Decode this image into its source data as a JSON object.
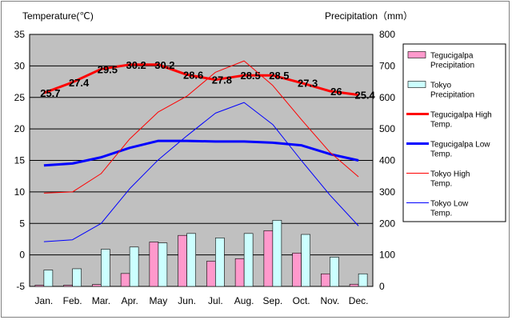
{
  "chart_data": {
    "type": "bar+line",
    "left_axis_title": "Temperature(℃)",
    "right_axis_title": "Precipitation（mm）",
    "categories": [
      "Jan.",
      "Feb.",
      "Mar.",
      "Apr.",
      "May",
      "Jun.",
      "Jul.",
      "Aug.",
      "Sep.",
      "Oct.",
      "Nov.",
      "Dec."
    ],
    "y_left": {
      "min": -5,
      "max": 35,
      "step": 5
    },
    "y_right": {
      "min": 0,
      "max": 800,
      "step": 100
    },
    "grid": "horizontal",
    "legend_position": "right",
    "bar_series": [
      {
        "name": "Tegucigalpa Precipitation",
        "color": "#ff99cc",
        "values": [
          4,
          4,
          6,
          41,
          141,
          162,
          80,
          88,
          177,
          106,
          40,
          7
        ]
      },
      {
        "name": "Tokyo Precipitation",
        "color": "#ccffff",
        "values": [
          52,
          56,
          118,
          125,
          138,
          168,
          154,
          168,
          210,
          165,
          93,
          40
        ]
      }
    ],
    "line_series": [
      {
        "name": "Tegucigalpa High Temp.",
        "color": "#ff0000",
        "width": 3,
        "values": [
          25.7,
          27.4,
          29.5,
          30.2,
          30.2,
          28.6,
          27.8,
          28.5,
          28.5,
          27.3,
          26,
          25.4
        ],
        "labels": [
          "25.7",
          "27.4",
          "29.5",
          "30.2",
          "30.2",
          "28.6",
          "27.8",
          "28.5",
          "28.5",
          "27.3",
          "26",
          "25.4"
        ]
      },
      {
        "name": "Tegucigalpa Low Temp.",
        "color": "#0000ff",
        "width": 3,
        "values": [
          14.2,
          14.5,
          15.5,
          17,
          18.1,
          18.1,
          18,
          18,
          17.8,
          17.4,
          16,
          15
        ]
      },
      {
        "name": "Tokyo High Temp.",
        "color": "#ff0000",
        "width": 1,
        "values": [
          9.8,
          10,
          12.9,
          18.4,
          22.7,
          25.2,
          29,
          30.8,
          26.9,
          21.5,
          16.3,
          12.4
        ]
      },
      {
        "name": "Tokyo Low Temp.",
        "color": "#0000ff",
        "width": 1,
        "values": [
          2.1,
          2.4,
          5,
          10.5,
          15.1,
          18.9,
          22.5,
          24.2,
          20.7,
          15,
          9.5,
          4.6
        ]
      }
    ]
  }
}
